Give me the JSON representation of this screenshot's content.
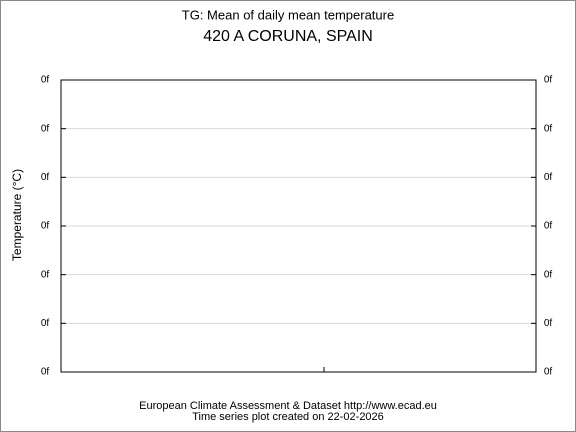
{
  "plot": {
    "title": "TG: Mean of daily mean temperature",
    "subtitle": "420 A CORUNA, SPAIN",
    "ylabel": "Temperature (°C)",
    "left_ticks": [
      "0f",
      "0f",
      "0f",
      "0f",
      "0f",
      "0f",
      "0f"
    ],
    "right_ticks": [
      "0f",
      "0f",
      "0f",
      "0f",
      "0f",
      "0f",
      "0f"
    ],
    "footer": [
      "European Climate Assessment & Dataset  http://www.ecad.eu",
      "Time series plot created on 22-02-2026"
    ]
  }
}
